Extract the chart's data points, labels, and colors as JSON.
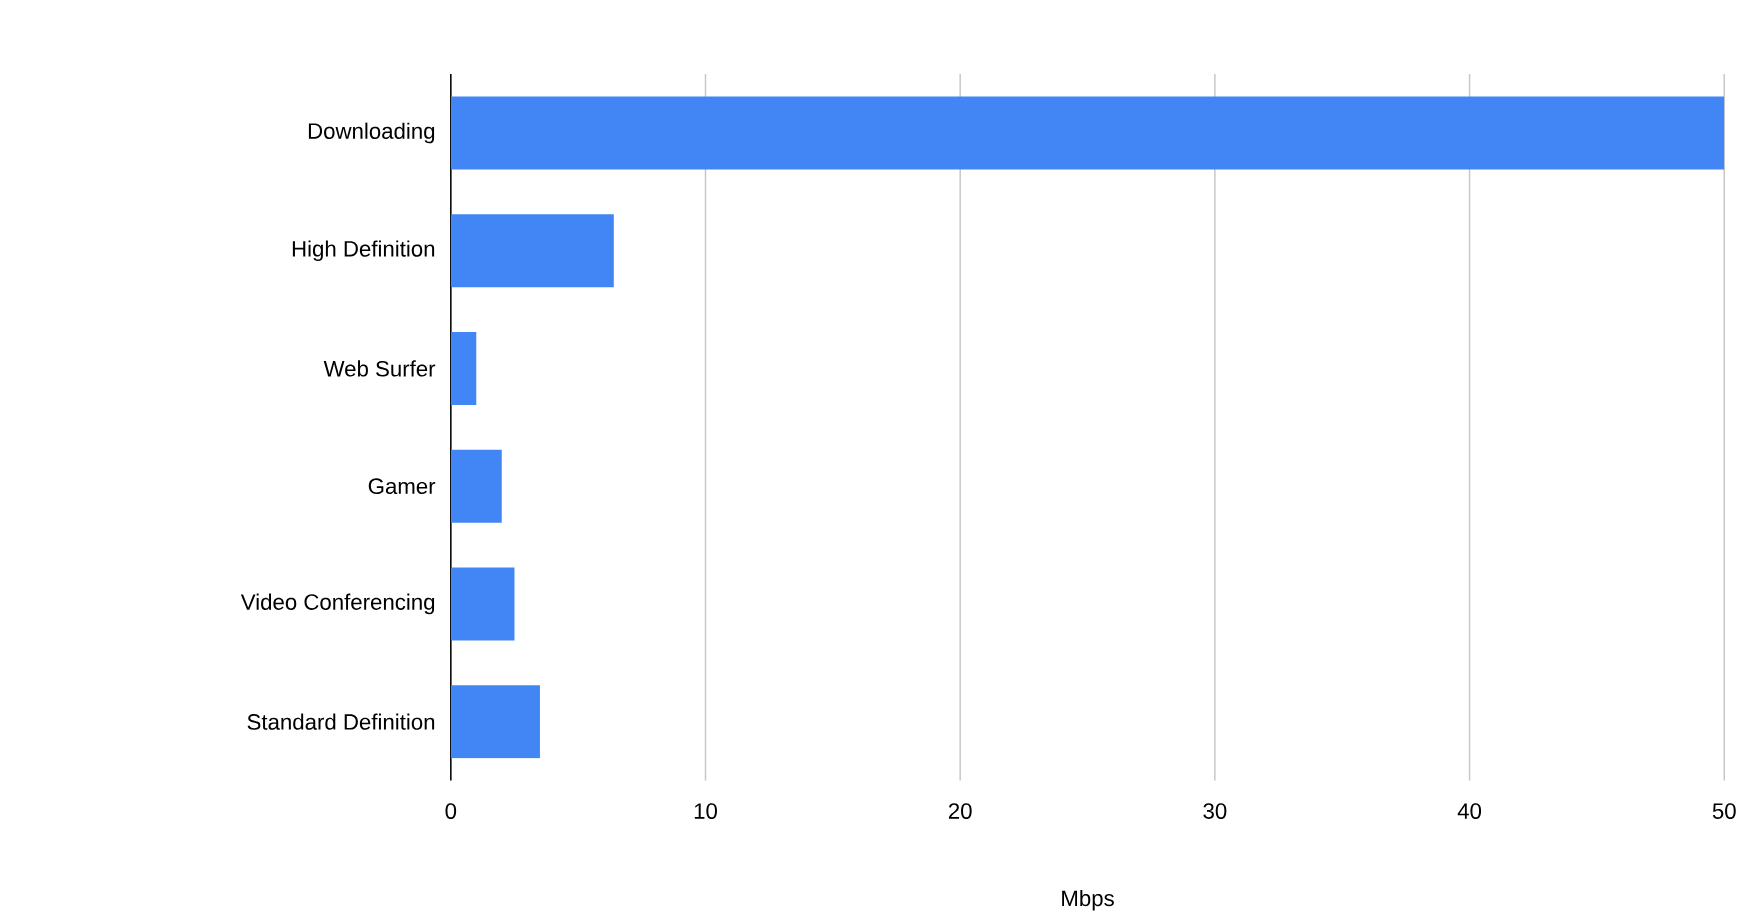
{
  "chart_data": {
    "type": "bar",
    "orientation": "horizontal",
    "xlabel": "Mbps",
    "categories": [
      "Downloading",
      "High Definition",
      "Web Surfer",
      "Gamer",
      "Video Conferencing",
      "Standard Definition"
    ],
    "values": [
      50,
      6.4,
      1.0,
      2.0,
      2.5,
      3.5
    ],
    "color": "#4285f4",
    "xlim": [
      0,
      50
    ],
    "xticks": [
      0,
      10,
      20,
      30,
      40,
      50
    ],
    "grid": "x"
  }
}
